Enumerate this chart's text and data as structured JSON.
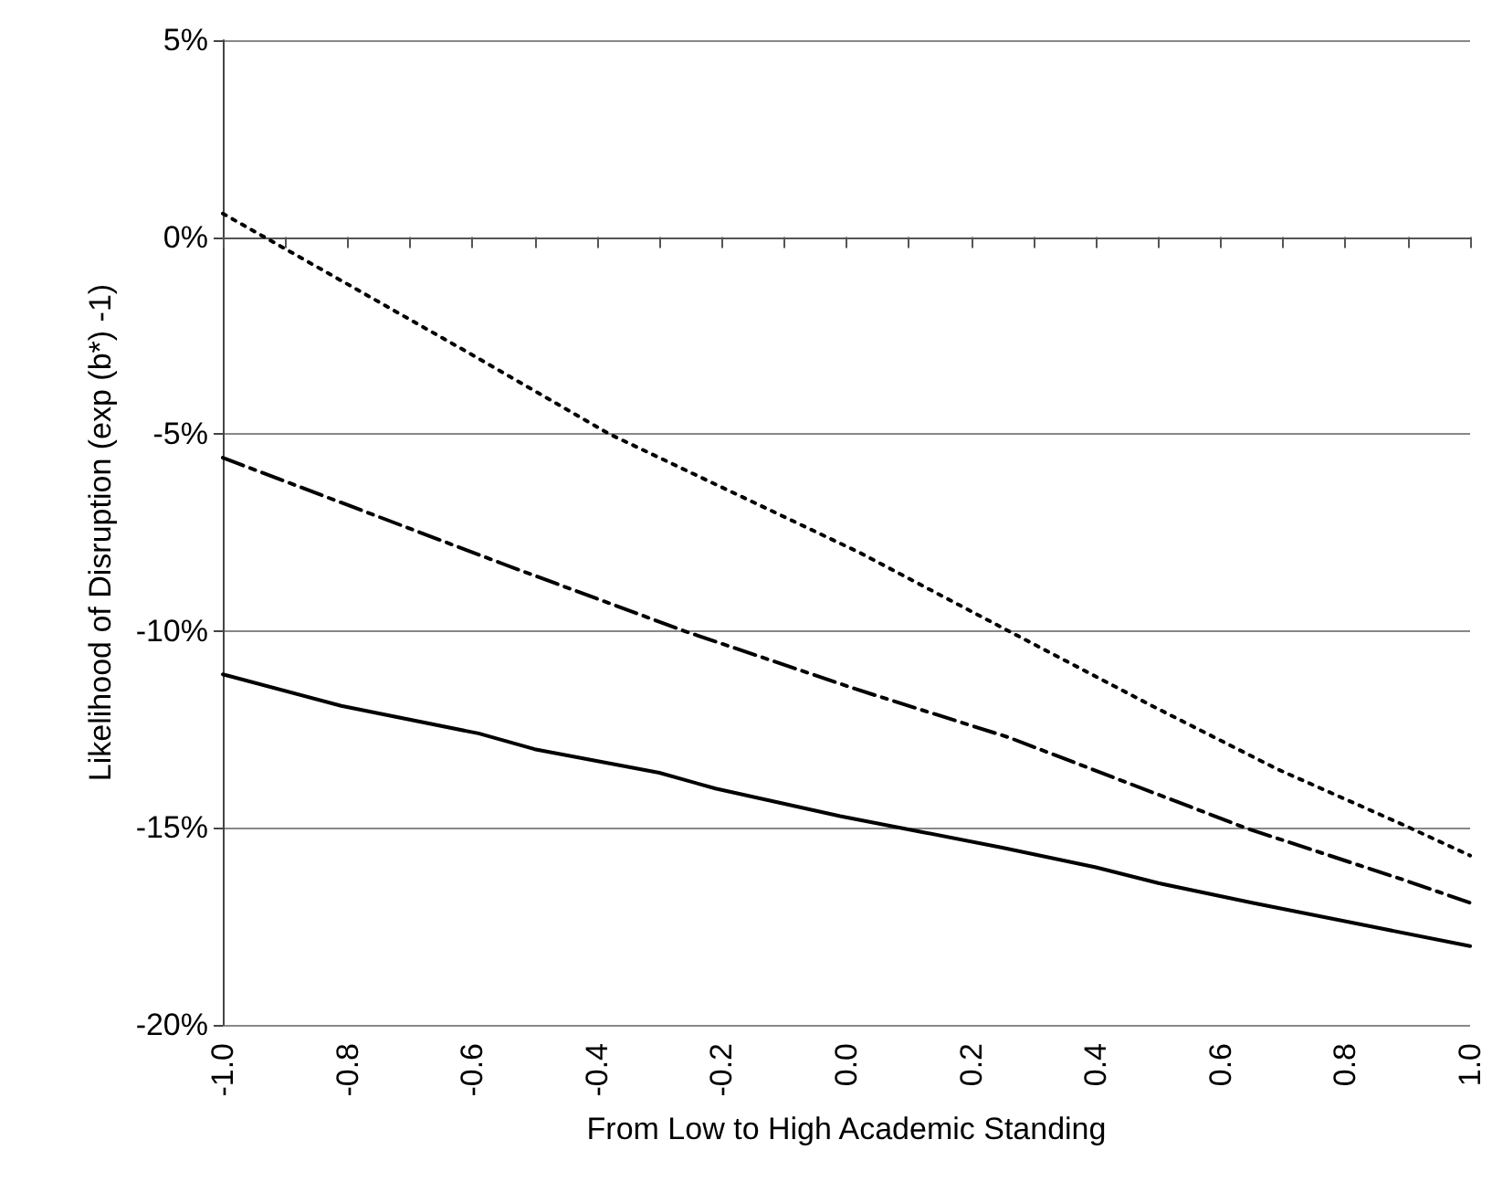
{
  "chart_data": {
    "type": "line",
    "xlabel": "From Low to High Academic Standing",
    "ylabel": "Likelihood of Disruption (exp (b*) -1)",
    "xlim": [
      -1.0,
      1.0
    ],
    "xticks": [
      {
        "value": -1.0,
        "label": "-1.0"
      },
      {
        "value": -0.9,
        "label": null
      },
      {
        "value": -0.8,
        "label": "-0.8"
      },
      {
        "value": -0.7,
        "label": null
      },
      {
        "value": -0.6,
        "label": "-0.6"
      },
      {
        "value": -0.5,
        "label": null
      },
      {
        "value": -0.4,
        "label": "-0.4"
      },
      {
        "value": -0.3,
        "label": null
      },
      {
        "value": -0.2,
        "label": "-0.2"
      },
      {
        "value": -0.1,
        "label": null
      },
      {
        "value": 0,
        "label": "0.0"
      },
      {
        "value": 0.1,
        "label": null
      },
      {
        "value": 0.2,
        "label": "0.2"
      },
      {
        "value": 0.3,
        "label": null
      },
      {
        "value": 0.4,
        "label": "0.4"
      },
      {
        "value": 0.5,
        "label": null
      },
      {
        "value": 0.6,
        "label": "0.6"
      },
      {
        "value": 0.7,
        "label": null
      },
      {
        "value": 0.8,
        "label": "0.8"
      },
      {
        "value": 0.9,
        "label": null
      },
      {
        "value": 1.0,
        "label": "1.0"
      }
    ],
    "ylim": [
      -20,
      5
    ],
    "yticks": [
      {
        "value": -20,
        "label": "-20%"
      },
      {
        "value": -15,
        "label": "-15%"
      },
      {
        "value": -10,
        "label": "-10%"
      },
      {
        "value": -5,
        "label": "-5%"
      },
      {
        "value": 0,
        "label": "0%"
      },
      {
        "value": 5,
        "label": "5%"
      }
    ],
    "grid": "y",
    "marker": "none",
    "series": [
      {
        "color": "#000000",
        "line_style": "dotted",
        "x": [
          -1.0,
          -0.61,
          -0.38,
          0.02,
          0.26,
          0.49,
          0.69,
          0.89,
          1.0
        ],
        "values": [
          0.6,
          -2.9,
          -5.0,
          -8.0,
          -10.0,
          -11.9,
          -13.5,
          -14.9,
          -15.7
        ]
      },
      {
        "color": "#000000",
        "line_style": "dashed",
        "x": [
          -1.0,
          -0.55,
          -0.26,
          0.02,
          0.26,
          0.64,
          0.89,
          1.0
        ],
        "values": [
          -5.6,
          -8.3,
          -10.0,
          -11.5,
          -12.7,
          -15.0,
          -16.3,
          -16.9
        ]
      },
      {
        "color": "#000000",
        "line_style": "solid",
        "x": [
          -1.0,
          -0.81,
          -0.59,
          -0.5,
          -0.3,
          -0.21,
          -0.01,
          0.12,
          0.25,
          0.4,
          0.5,
          0.65,
          1.0
        ],
        "values": [
          -11.1,
          -11.9,
          -12.6,
          -13.0,
          -13.6,
          -14.0,
          -14.7,
          -15.1,
          -15.5,
          -16.0,
          -16.4,
          -16.9,
          -18.0
        ]
      }
    ]
  }
}
